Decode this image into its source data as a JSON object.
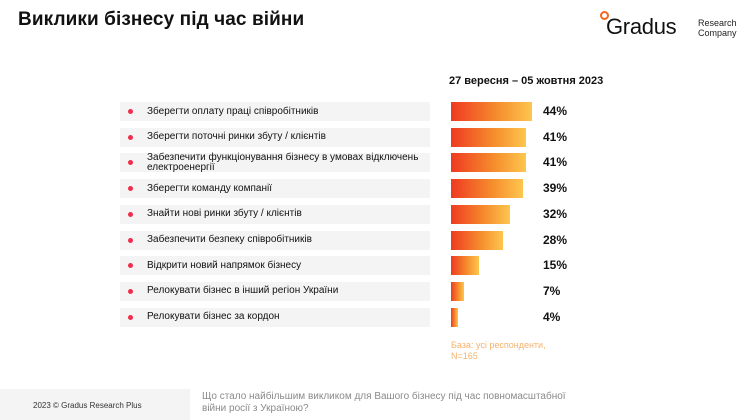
{
  "title": "Виклики бізнесу під час війни",
  "logo": {
    "word": "Gradus",
    "sub_line1": "Research",
    "sub_line2": "Company"
  },
  "chart_data": {
    "type": "bar",
    "orientation": "horizontal",
    "series_label": "27 вересня – 05 жовтня 2023",
    "categories": [
      "Зберегти оплату праці співробітників",
      "Зберегти поточні ринки збуту / клієнтів",
      "Забезпечити функціонування бізнесу в умовах відключень електроенергії",
      "Зберегти команду компанії",
      "Знайти нові ринки збуту / клієнтів",
      "Забезпечити безпеку співробітників",
      "Відкрити новий напрямок бізнесу",
      "Релокувати бізнес в інший регіон України",
      "Релокувати бізнес за кордон"
    ],
    "values": [
      44,
      41,
      41,
      39,
      32,
      28,
      15,
      7,
      4
    ],
    "labels": [
      "44%",
      "41%",
      "41%",
      "39%",
      "32%",
      "28%",
      "15%",
      "7%",
      "4%"
    ],
    "unit": "%",
    "xlim": [
      0,
      44
    ]
  },
  "base_note": "База: усі респонденти, N=165",
  "footer": {
    "copyright": "2023 © Gradus Research Plus",
    "question": "Що стало найбільшим викликом для Вашого бізнесу під час повномасштабної війни росії з Україною?"
  },
  "colors": {
    "dot": "#ef2d4c",
    "bar_start": "#ef3a22",
    "bar_end": "#fdc64e",
    "logo_accent": "#f26722",
    "note": "#f6b26b"
  }
}
